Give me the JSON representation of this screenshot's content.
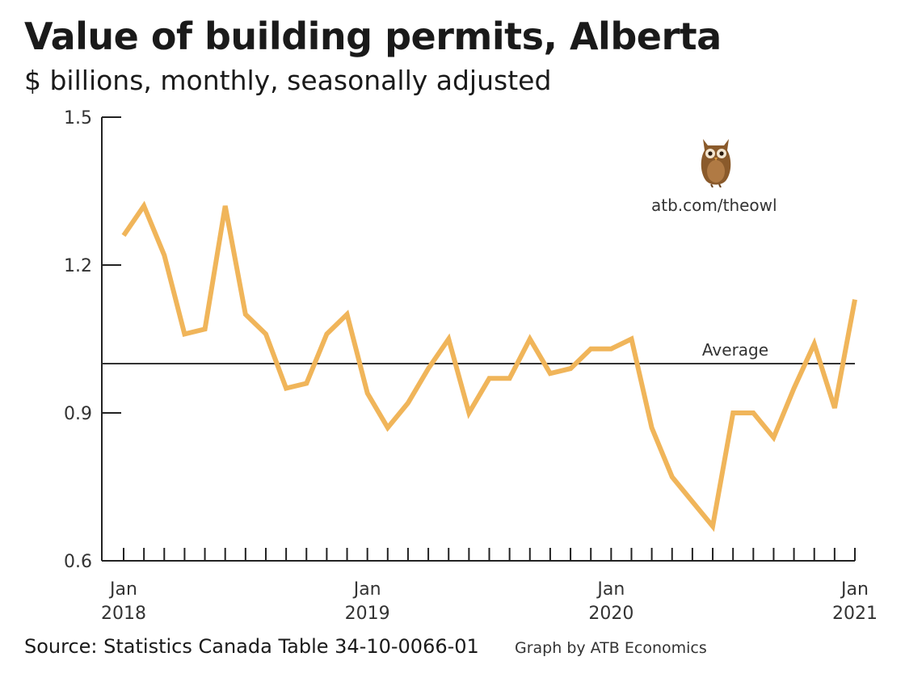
{
  "title": "Value of building permits, Alberta",
  "subtitle": "$ billions, monthly, seasonally adjusted",
  "source": "Source: Statistics Canada Table 34-10-0066-01",
  "credit": "Graph by ATB Economics",
  "owl_link": "atb.com/theowl",
  "colors": {
    "line": "#f0b55a",
    "axis": "#222222",
    "average": "#333333"
  },
  "chart_data": {
    "type": "line",
    "ylim": [
      0.6,
      1.5
    ],
    "yticks": [
      "0.6",
      "0.9",
      "1.2",
      "1.5"
    ],
    "x_tick_labels": [
      {
        "month": "Jan",
        "year": "2018"
      },
      {
        "month": "Jan",
        "year": "2019"
      },
      {
        "month": "Jan",
        "year": "2020"
      },
      {
        "month": "Jan",
        "year": "2021"
      }
    ],
    "x": [
      "2018-01",
      "2018-02",
      "2018-03",
      "2018-04",
      "2018-05",
      "2018-06",
      "2018-07",
      "2018-08",
      "2018-09",
      "2018-10",
      "2018-11",
      "2018-12",
      "2019-01",
      "2019-02",
      "2019-03",
      "2019-04",
      "2019-05",
      "2019-06",
      "2019-07",
      "2019-08",
      "2019-09",
      "2019-10",
      "2019-11",
      "2019-12",
      "2020-01",
      "2020-02",
      "2020-03",
      "2020-04",
      "2020-05",
      "2020-06",
      "2020-07",
      "2020-08",
      "2020-09",
      "2020-10",
      "2020-11",
      "2020-12",
      "2021-01"
    ],
    "values": [
      1.26,
      1.32,
      1.22,
      1.06,
      1.07,
      1.32,
      1.1,
      1.06,
      0.95,
      0.96,
      1.06,
      1.1,
      0.94,
      0.87,
      0.92,
      0.99,
      1.05,
      0.9,
      0.97,
      0.97,
      1.05,
      0.98,
      0.99,
      1.03,
      1.03,
      1.05,
      0.87,
      0.77,
      0.72,
      0.67,
      0.9,
      0.9,
      0.85,
      0.95,
      1.04,
      0.91,
      1.13
    ],
    "average": {
      "label": "Average",
      "value": 1.0
    }
  }
}
